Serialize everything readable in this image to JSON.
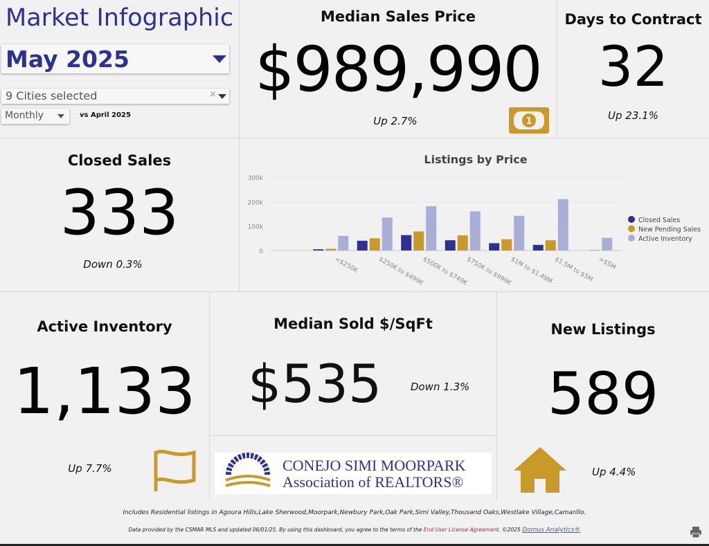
{
  "header": {
    "title": "Market Infographic",
    "period": "May 2025",
    "cities": "9 Cities selected",
    "frequency": "Monthly",
    "comparison": "vs April 2025"
  },
  "metrics": {
    "median_sales_price": {
      "title": "Median Sales Price",
      "value": "$989,990",
      "change": "Up 2.7%",
      "icon": "money-bill-icon"
    },
    "days_to_contract": {
      "title": "Days to Contract",
      "value": "32",
      "change": "Up 23.1%"
    },
    "closed_sales": {
      "title": "Closed Sales",
      "value": "333",
      "change": "Down 0.3%"
    },
    "active_inventory": {
      "title": "Active Inventory",
      "value": "1,133",
      "change": "Up 7.7%",
      "icon": "flag-icon"
    },
    "median_sold_sqft": {
      "title": "Median Sold $/SqFt",
      "value": "$535",
      "change": "Down 1.3%"
    },
    "new_listings": {
      "title": "New Listings",
      "value": "589",
      "change": "Up 4.4%",
      "icon": "house-icon"
    }
  },
  "logo": {
    "line1": "CONEJO SIMI MOORPARK",
    "line2": "Association of REALTORS®"
  },
  "footer": {
    "cities_note": "Includes Residential listings in Agoura Hills,Lake Sherwood,Moorpark,Newbury Park,Oak Park,Simi Valley,Thousand Oaks,Westlake Village,Camarillo.",
    "data_note": "Data provided by the CSMAR MLS and updated 06/01/25.  By using this dashboard, you agree to the terms of the ",
    "eula": "End User License Agreement",
    "copyright": ".  ©2025 ",
    "domus": "Domus Analytics®"
  },
  "colors": {
    "accent": "#2e3192",
    "gold": "#c9992a",
    "light": "#a9aed6"
  },
  "chart_data": {
    "type": "bar",
    "title": "Listings by Price",
    "categories": [
      "<$250K",
      "$250K to $499K",
      "$500K to $749K",
      "$750K to $999K",
      "$1M to $1.49M",
      "$1.5M to $5M",
      ">$5M"
    ],
    "ylim": [
      0,
      300000
    ],
    "yticks": [
      "0",
      "100k",
      "200k",
      "300k"
    ],
    "legend": "right",
    "grid": true,
    "series": [
      {
        "name": "Closed Sales",
        "color": "#2e3192",
        "values": [
          5000,
          40000,
          63000,
          42000,
          30000,
          23000,
          0
        ]
      },
      {
        "name": "New Pending Sales",
        "color": "#c9992a",
        "values": [
          7000,
          50000,
          78000,
          62000,
          46000,
          42000,
          2000
        ]
      },
      {
        "name": "Active Inventory",
        "color": "#a9aed6",
        "values": [
          60000,
          135000,
          181000,
          160000,
          142000,
          210000,
          52000
        ]
      }
    ]
  }
}
